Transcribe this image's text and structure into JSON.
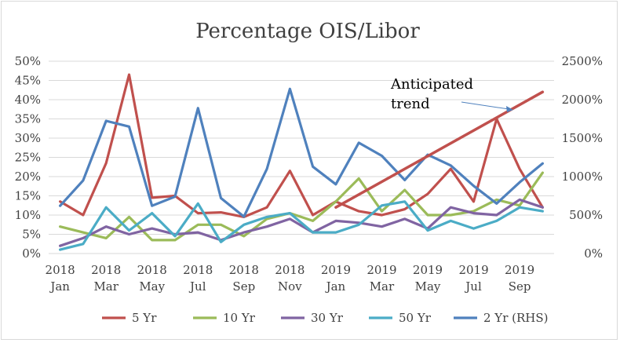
{
  "chart_data": {
    "type": "line",
    "title": "Percentage OIS/Libor",
    "x_labels": [
      {
        "year": "2018",
        "month": "Jan"
      },
      {
        "year": "2018",
        "month": "Mar"
      },
      {
        "year": "2018",
        "month": "May"
      },
      {
        "year": "2018",
        "month": "Jul"
      },
      {
        "year": "2018",
        "month": "Sep"
      },
      {
        "year": "2018",
        "month": "Nov"
      },
      {
        "year": "2019",
        "month": "Jan"
      },
      {
        "year": "2019",
        "month": "Mar"
      },
      {
        "year": "2019",
        "month": "May"
      },
      {
        "year": "2019",
        "month": "Jul"
      },
      {
        "year": "2019",
        "month": "Sep"
      }
    ],
    "x": [
      "2018-01",
      "2018-02",
      "2018-03",
      "2018-04",
      "2018-05",
      "2018-06",
      "2018-07",
      "2018-08",
      "2018-09",
      "2018-10",
      "2018-11",
      "2018-12",
      "2019-01",
      "2019-02",
      "2019-03",
      "2019-04",
      "2019-05",
      "2019-06",
      "2019-07",
      "2019-08",
      "2019-09",
      "2019-10"
    ],
    "y_left": {
      "min": 0,
      "max": 50,
      "step": 5,
      "ticks": [
        "0%",
        "5%",
        "10%",
        "15%",
        "20%",
        "25%",
        "30%",
        "35%",
        "40%",
        "45%",
        "50%"
      ]
    },
    "y_right": {
      "min": 0,
      "max": 2500,
      "step": 500,
      "ticks": [
        "0%",
        "500%",
        "1000%",
        "1500%",
        "2000%",
        "2500%"
      ]
    },
    "grid": "horizontal",
    "legend_position": "bottom",
    "series": [
      {
        "name": "5 Yr",
        "axis": "left",
        "color": "#c0504d",
        "values": [
          13.5,
          10,
          23.5,
          46.5,
          14.5,
          15,
          10.5,
          10.7,
          9.5,
          12,
          21.5,
          10,
          13.5,
          11,
          10,
          11.5,
          15.5,
          22,
          13.5,
          35,
          22,
          12
        ]
      },
      {
        "name": "10 Yr",
        "axis": "left",
        "color": "#9bbb59",
        "values": [
          7,
          5.5,
          4,
          9.5,
          3.5,
          3.5,
          7.5,
          7.5,
          4.5,
          9,
          10.5,
          8.5,
          13.5,
          19.5,
          11,
          16.5,
          10,
          10,
          11,
          14,
          12.5,
          21
        ]
      },
      {
        "name": "30 Yr",
        "axis": "left",
        "color": "#8064a2",
        "values": [
          2,
          4,
          7,
          5,
          6.5,
          5,
          5.5,
          3.5,
          5.5,
          7,
          9,
          5.5,
          8.5,
          8,
          7,
          9,
          6.5,
          12,
          10.5,
          10,
          14,
          12
        ]
      },
      {
        "name": "50 Yr",
        "axis": "left",
        "color": "#4bacc6",
        "values": [
          1,
          2.5,
          12,
          6,
          10.5,
          4.5,
          13,
          3,
          7.5,
          9.5,
          10.5,
          5.5,
          5.5,
          7.5,
          12.5,
          13.5,
          6,
          8.5,
          6.5,
          8.5,
          12,
          11
        ]
      },
      {
        "name": "2 Yr (RHS)",
        "axis": "right",
        "color": "#4f81bd",
        "values": [
          620,
          950,
          1725,
          1650,
          620,
          740,
          1890,
          720,
          480,
          1100,
          2140,
          1130,
          900,
          1440,
          1270,
          955,
          1285,
          1145,
          880,
          650,
          925,
          1170
        ]
      }
    ],
    "trend_line": {
      "from": {
        "x": "2019-01",
        "y": 12
      },
      "to": {
        "x": "2019-10",
        "y": 42
      },
      "color": "#c0504d"
    },
    "annotation": {
      "lines": [
        "Anticipated",
        "trend"
      ],
      "arrow_color": "#4f81bd"
    }
  }
}
